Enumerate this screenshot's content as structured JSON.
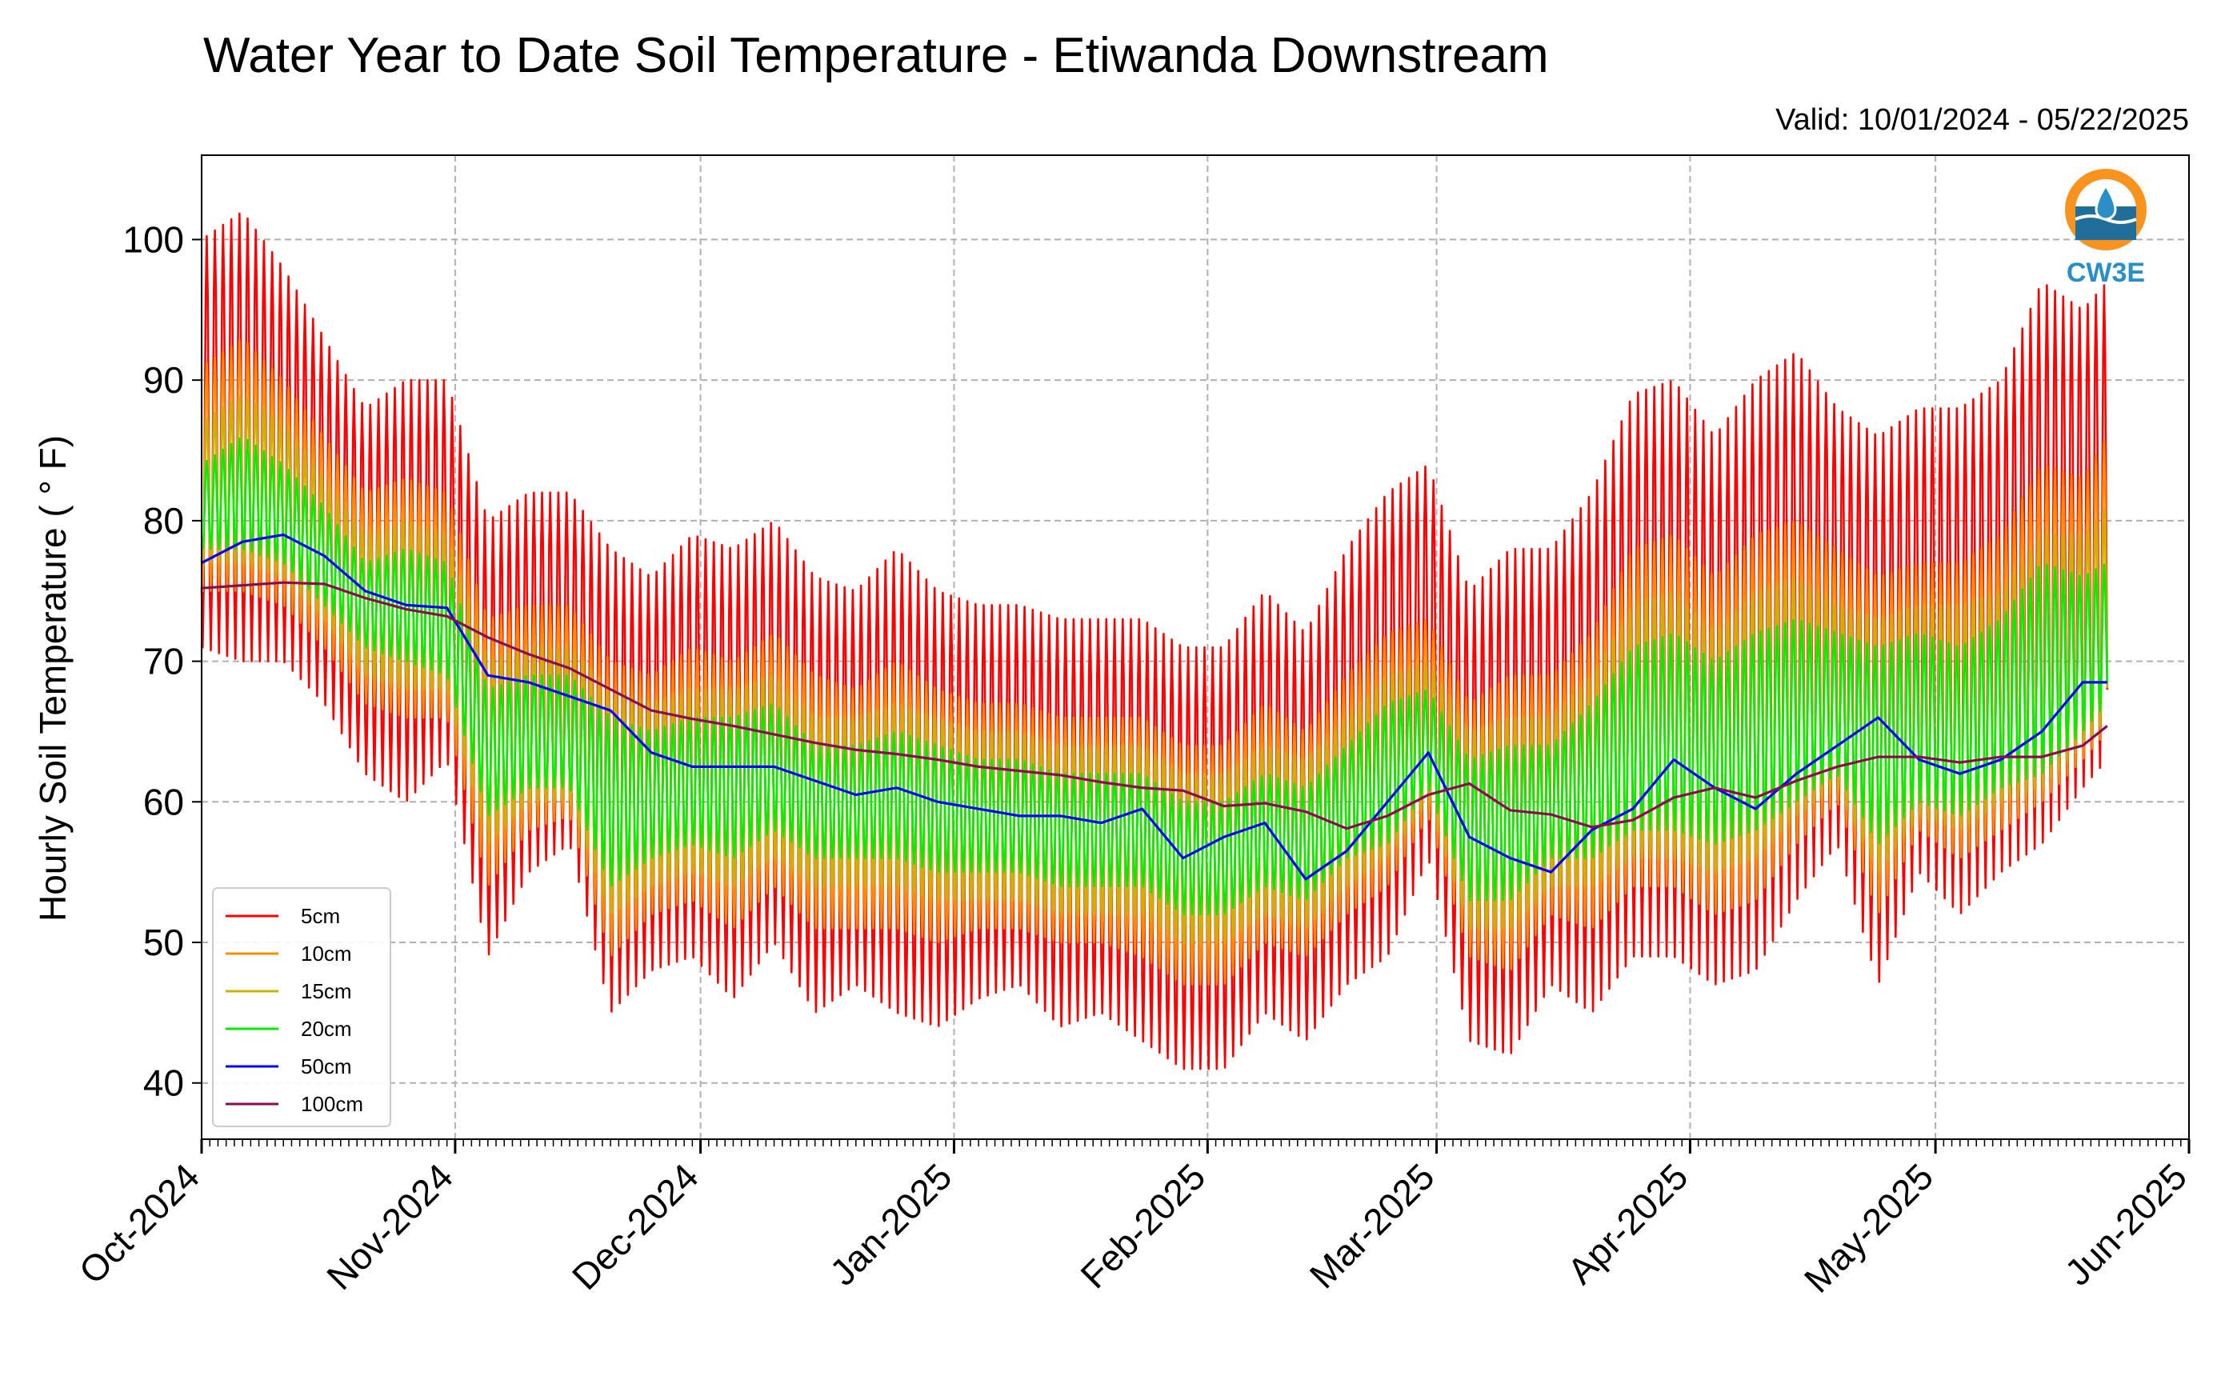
{
  "chart_data": {
    "type": "line",
    "title": "Water Year to Date Soil Temperature - Etiwanda Downstream",
    "subtitle": "Valid: 10/01/2024 - 05/22/2025",
    "xlabel": "",
    "ylabel": "Hourly Soil Temperature ( ° F)",
    "ylim": [
      36,
      106
    ],
    "yticks": [
      40,
      50,
      60,
      70,
      80,
      90,
      100
    ],
    "xlim": [
      "2024-10-01",
      "2025-06-01"
    ],
    "x_tick_labels": [
      "Oct-2024",
      "Nov-2024",
      "Dec-2024",
      "Jan-2025",
      "Feb-2025",
      "Mar-2025",
      "Apr-2025",
      "May-2025",
      "Jun-2025"
    ],
    "grid": true,
    "legend_position": "lower-left",
    "x": [
      "2024-10-01",
      "2024-10-06",
      "2024-10-11",
      "2024-10-16",
      "2024-10-21",
      "2024-10-26",
      "2024-10-31",
      "2024-11-05",
      "2024-11-10",
      "2024-11-15",
      "2024-11-20",
      "2024-11-25",
      "2024-11-30",
      "2024-12-05",
      "2024-12-10",
      "2024-12-15",
      "2024-12-20",
      "2024-12-25",
      "2024-12-30",
      "2025-01-04",
      "2025-01-09",
      "2025-01-14",
      "2025-01-19",
      "2025-01-24",
      "2025-01-29",
      "2025-02-03",
      "2025-02-08",
      "2025-02-13",
      "2025-02-18",
      "2025-02-23",
      "2025-02-28",
      "2025-03-05",
      "2025-03-10",
      "2025-03-15",
      "2025-03-20",
      "2025-03-25",
      "2025-03-30",
      "2025-04-04",
      "2025-04-09",
      "2025-04-14",
      "2025-04-19",
      "2025-04-24",
      "2025-04-29",
      "2025-05-04",
      "2025-05-09",
      "2025-05-14",
      "2025-05-19",
      "2025-05-22"
    ],
    "series": [
      {
        "name": "5cm",
        "color": "#ff0000",
        "amplitude_min": [
          71,
          70,
          70,
          67,
          62,
          60,
          63,
          49,
          55,
          57,
          45,
          48,
          49,
          46,
          50,
          45,
          47,
          45,
          44,
          46,
          47,
          44,
          45,
          43,
          41,
          41,
          45,
          43,
          47,
          49,
          56,
          43,
          42,
          47,
          45,
          49,
          49,
          47,
          48,
          53,
          57,
          47,
          55,
          52,
          55,
          57,
          61,
          63
        ],
        "amplitude_max": [
          100,
          102,
          98,
          93,
          88,
          90,
          90,
          80,
          82,
          82,
          78,
          76,
          79,
          78,
          80,
          76,
          75,
          78,
          75,
          74,
          74,
          73,
          73,
          73,
          71,
          71,
          75,
          72,
          78,
          82,
          84,
          75,
          78,
          78,
          82,
          89,
          90,
          86,
          90,
          92,
          88,
          86,
          88,
          88,
          90,
          97,
          95,
          97
        ]
      },
      {
        "name": "10cm",
        "color": "#ff8c00",
        "amplitude_min": [
          75,
          75,
          74,
          71,
          67,
          66,
          66,
          54,
          58,
          59,
          49,
          52,
          53,
          51,
          54,
          51,
          51,
          51,
          50,
          51,
          51,
          50,
          50,
          49,
          47,
          47,
          50,
          49,
          52,
          54,
          59,
          49,
          48,
          52,
          51,
          54,
          54,
          52,
          53,
          57,
          60,
          52,
          58,
          56,
          58,
          60,
          63,
          65
        ],
        "amplitude_max": [
          91,
          93,
          90,
          86,
          82,
          83,
          82,
          73,
          74,
          74,
          70,
          69,
          71,
          70,
          72,
          69,
          68,
          70,
          68,
          67,
          67,
          66,
          66,
          66,
          64,
          64,
          67,
          65,
          69,
          72,
          73,
          67,
          69,
          69,
          72,
          78,
          79,
          76,
          79,
          80,
          78,
          76,
          77,
          77,
          79,
          84,
          83,
          86
        ]
      },
      {
        "name": "15cm",
        "color": "#c8b400",
        "amplitude_min": [
          77,
          77,
          76,
          73,
          69,
          68,
          68,
          57,
          60,
          60,
          52,
          54,
          55,
          54,
          56,
          54,
          54,
          54,
          53,
          53,
          53,
          52,
          52,
          52,
          50,
          50,
          52,
          51,
          54,
          56,
          60,
          51,
          51,
          54,
          54,
          56,
          56,
          55,
          56,
          59,
          61,
          55,
          59,
          58,
          60,
          61,
          64,
          66
        ],
        "amplitude_max": [
          87,
          89,
          87,
          83,
          79,
          80,
          79,
          70,
          71,
          71,
          68,
          67,
          68,
          68,
          69,
          66,
          66,
          67,
          66,
          65,
          65,
          64,
          64,
          64,
          62,
          62,
          64,
          63,
          66,
          69,
          70,
          65,
          66,
          66,
          69,
          74,
          75,
          72,
          75,
          76,
          74,
          73,
          74,
          74,
          75,
          79,
          79,
          81
        ]
      },
      {
        "name": "20cm",
        "color": "#00ee00",
        "amplitude_min": [
          78,
          78,
          77,
          74,
          71,
          70,
          69,
          59,
          61,
          61,
          54,
          56,
          57,
          56,
          58,
          56,
          56,
          56,
          55,
          55,
          55,
          54,
          54,
          54,
          52,
          52,
          54,
          53,
          56,
          57,
          61,
          53,
          53,
          56,
          56,
          58,
          58,
          57,
          58,
          60,
          62,
          57,
          60,
          59,
          61,
          62,
          65,
          67
        ],
        "amplitude_max": [
          84,
          86,
          84,
          81,
          77,
          78,
          77,
          68,
          69,
          69,
          66,
          65,
          66,
          66,
          67,
          64,
          64,
          65,
          64,
          63,
          63,
          62,
          62,
          62,
          60,
          60,
          62,
          61,
          64,
          67,
          68,
          63,
          64,
          64,
          67,
          71,
          72,
          70,
          72,
          73,
          72,
          71,
          72,
          71,
          73,
          77,
          76,
          77
        ]
      },
      {
        "name": "50cm",
        "color": "#0000ff",
        "values": [
          77,
          78.5,
          79,
          77.5,
          75,
          74,
          73.8,
          69,
          68.5,
          67.5,
          66.5,
          63.5,
          62.5,
          62.5,
          62.5,
          61.5,
          60.5,
          61,
          60,
          59.5,
          59,
          59,
          58.5,
          59.5,
          56,
          57.5,
          58.5,
          54.5,
          56.5,
          60,
          63.5,
          57.5,
          56,
          55,
          58,
          59.5,
          63,
          61,
          59.5,
          62,
          64,
          66,
          63,
          62,
          63,
          65,
          68.5,
          68.5
        ]
      },
      {
        "name": "100cm",
        "color": "#8b0a50",
        "values": [
          75.2,
          75.4,
          75.6,
          75.5,
          74.5,
          73.7,
          73.2,
          71.7,
          70.5,
          69.5,
          68,
          66.5,
          65.9,
          65.4,
          64.8,
          64.2,
          63.7,
          63.4,
          63,
          62.5,
          62.2,
          61.9,
          61.4,
          61,
          60.8,
          59.7,
          59.9,
          59.3,
          58.1,
          59,
          60.5,
          61.3,
          59.4,
          59.1,
          58.2,
          58.7,
          60.3,
          61,
          60.3,
          61.5,
          62.5,
          63.2,
          63.2,
          62.8,
          63.2,
          63.2,
          64,
          65.4
        ]
      }
    ]
  },
  "logo": {
    "text": "CW3E",
    "color": "#2b8fc7",
    "accent": "#f7931e"
  }
}
